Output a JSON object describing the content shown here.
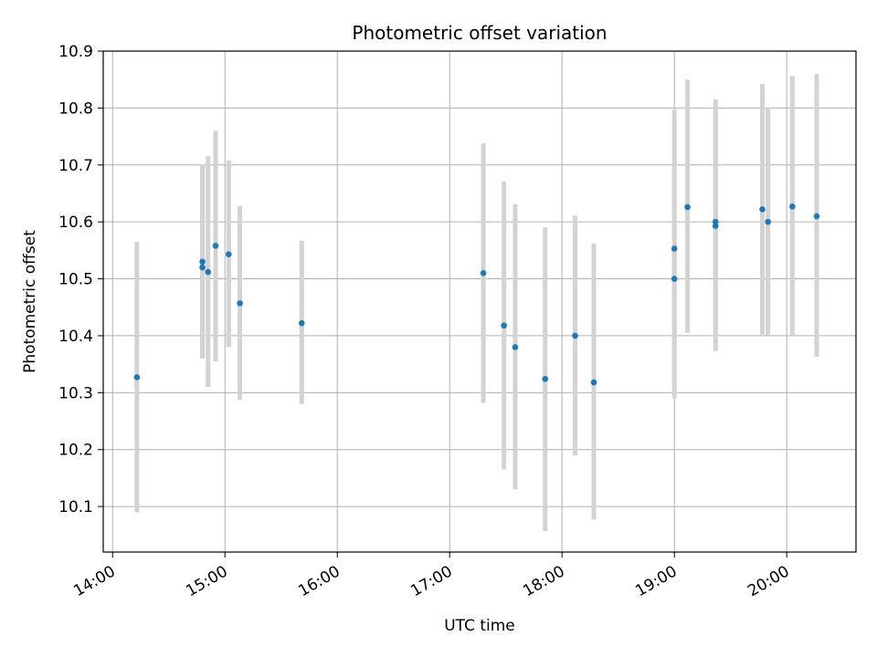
{
  "chart_data": {
    "type": "scatter",
    "title": "Photometric offset variation",
    "xlabel": "UTC time",
    "ylabel": "Photometric offset",
    "x_axis": "time",
    "xlim": [
      "13:55",
      "20:37"
    ],
    "ylim": [
      10.02,
      10.9
    ],
    "xticks": [
      "14:00",
      "15:00",
      "16:00",
      "17:00",
      "18:00",
      "19:00",
      "20:00"
    ],
    "yticks": [
      "10.1",
      "10.2",
      "10.3",
      "10.4",
      "10.5",
      "10.6",
      "10.7",
      "10.8",
      "10.9"
    ],
    "grid": true,
    "point_color": "#1f77b4",
    "errorbar_color": "#d3d3d3",
    "points": [
      {
        "t": "14:13",
        "y": 10.327,
        "lo": 10.09,
        "hi": 10.565
      },
      {
        "t": "14:48",
        "y": 10.53,
        "lo": 10.36,
        "hi": 10.7
      },
      {
        "t": "14:48",
        "y": 10.52,
        "lo": 10.36,
        "hi": 10.7
      },
      {
        "t": "14:51",
        "y": 10.512,
        "lo": 10.31,
        "hi": 10.715
      },
      {
        "t": "14:55",
        "y": 10.558,
        "lo": 10.355,
        "hi": 10.76
      },
      {
        "t": "15:02",
        "y": 10.543,
        "lo": 10.38,
        "hi": 10.708
      },
      {
        "t": "15:08",
        "y": 10.457,
        "lo": 10.287,
        "hi": 10.628
      },
      {
        "t": "15:41",
        "y": 10.422,
        "lo": 10.28,
        "hi": 10.567
      },
      {
        "t": "17:18",
        "y": 10.51,
        "lo": 10.282,
        "hi": 10.738
      },
      {
        "t": "17:29",
        "y": 10.418,
        "lo": 10.165,
        "hi": 10.671
      },
      {
        "t": "17:35",
        "y": 10.38,
        "lo": 10.13,
        "hi": 10.631
      },
      {
        "t": "17:51",
        "y": 10.324,
        "lo": 10.057,
        "hi": 10.59
      },
      {
        "t": "18:07",
        "y": 10.4,
        "lo": 10.19,
        "hi": 10.611
      },
      {
        "t": "18:17",
        "y": 10.318,
        "lo": 10.077,
        "hi": 10.562
      },
      {
        "t": "19:00",
        "y": 10.553,
        "lo": 10.31,
        "hi": 10.797
      },
      {
        "t": "19:00",
        "y": 10.5,
        "lo": 10.29,
        "hi": 10.71
      },
      {
        "t": "19:07",
        "y": 10.626,
        "lo": 10.405,
        "hi": 10.85
      },
      {
        "t": "19:22",
        "y": 10.593,
        "lo": 10.373,
        "hi": 10.815
      },
      {
        "t": "19:22",
        "y": 10.6,
        "lo": 10.4,
        "hi": 10.8
      },
      {
        "t": "19:47",
        "y": 10.622,
        "lo": 10.402,
        "hi": 10.842
      },
      {
        "t": "19:50",
        "y": 10.6,
        "lo": 10.4,
        "hi": 10.8
      },
      {
        "t": "20:03",
        "y": 10.627,
        "lo": 10.4,
        "hi": 10.856
      },
      {
        "t": "20:16",
        "y": 10.61,
        "lo": 10.363,
        "hi": 10.86
      }
    ]
  }
}
